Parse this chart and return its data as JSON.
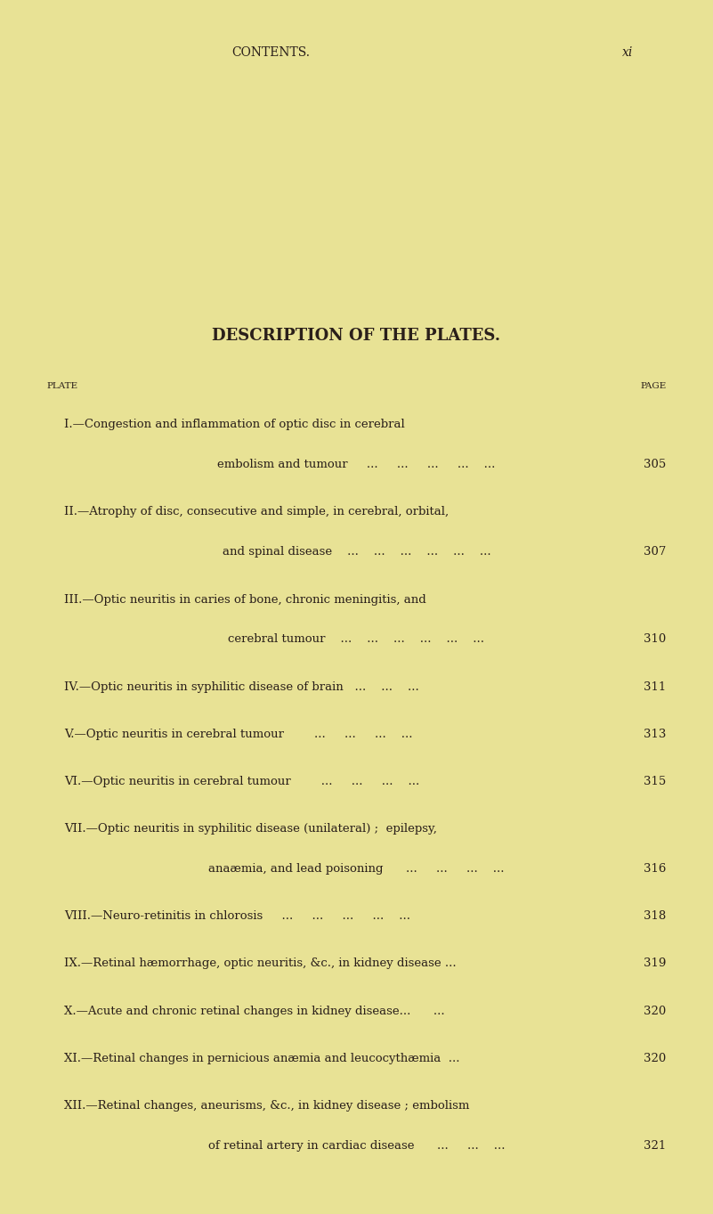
{
  "background_color": "#e8e295",
  "text_color": "#2a1f1a",
  "page_header_left": "CONTENTS.",
  "page_header_right": "xi",
  "section_title": "DESCRIPTION OF THE PLATES.",
  "col_left": "PLATE",
  "col_right": "PAGE",
  "entries": [
    {
      "plate": "I.",
      "line1": "—Congestion and inflammation of optic disc in cerebral",
      "line2": "embolism and tumour     ...     ...     ...     ...    ...",
      "page": "305"
    },
    {
      "plate": "II.",
      "line1": "—Atrophy of disc, consecutive and simple, in cerebral, orbital,",
      "line2": "and spinal disease    ...    ...    ...    ...    ...    ...",
      "page": "307"
    },
    {
      "plate": "III.",
      "line1": "—Optic neuritis in caries of bone, chronic meningitis, and",
      "line2": "cerebral tumour    ...    ...    ...    ...    ...    ...",
      "page": "310"
    },
    {
      "plate": "IV.",
      "line1": "—Optic neuritis in syphilitic disease of brain   ...    ...    ...",
      "line2": null,
      "page": "311"
    },
    {
      "plate": "V.",
      "line1": "—Optic neuritis in cerebral tumour        ...     ...     ...    ...",
      "line2": null,
      "page": "313"
    },
    {
      "plate": "VI.",
      "line1": "—Optic neuritis in cerebral tumour        ...     ...     ...    ...",
      "line2": null,
      "page": "315"
    },
    {
      "plate": "VII.",
      "line1": "—Optic neuritis in syphilitic disease (unilateral) ;  epilepsy,",
      "line2": "anaæmia, and lead poisoning      ...     ...     ...    ...",
      "page": "316"
    },
    {
      "plate": "VIII.",
      "line1": "—Neuro-retinitis in chlorosis     ...     ...     ...     ...    ...",
      "line2": null,
      "page": "318"
    },
    {
      "plate": "IX.",
      "line1": "—Retinal hæmorrhage, optic neuritis, &c., in kidney disease ...",
      "line2": null,
      "page": "319"
    },
    {
      "plate": "X.",
      "line1": "—Acute and chronic retinal changes in kidney disease...      ...",
      "line2": null,
      "page": "320"
    },
    {
      "plate": "XI.",
      "line1": "—Retinal changes in pernicious anæmia and leucocythæmia  ...",
      "line2": null,
      "page": "320"
    },
    {
      "plate": "XII.",
      "line1": "—Retinal changes, aneurisms, &c., in kidney disease ; embolism",
      "line2": "of retinal artery in cardiac disease      ...     ...    ...",
      "page": "321"
    }
  ]
}
